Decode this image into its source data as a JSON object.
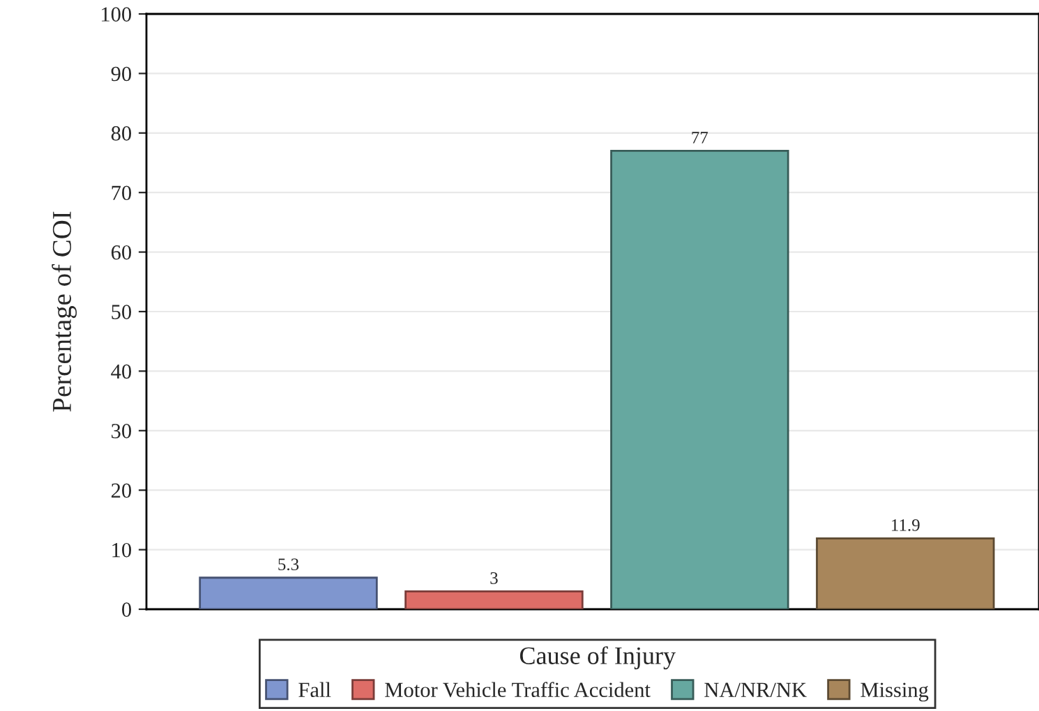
{
  "chart_data": {
    "type": "bar",
    "ylabel": "Percentage of COI",
    "legend_title": "Cause of Injury",
    "categories": [
      null,
      null,
      null,
      null
    ],
    "series": [
      {
        "name": "Fall",
        "color": "#7f96cf",
        "values": [
          5.3,
          null,
          null,
          null
        ]
      },
      {
        "name": "Motor Vehicle Traffic Accident",
        "color": "#de6d67",
        "values": [
          null,
          3,
          null,
          null
        ]
      },
      {
        "name": "NA/NR/NK",
        "color": "#66a8a0",
        "values": [
          null,
          null,
          77,
          null
        ]
      },
      {
        "name": "Missing",
        "color": "#a8865b",
        "values": [
          null,
          null,
          null,
          11.9
        ]
      }
    ],
    "ylim": [
      0,
      100
    ],
    "yticks": [
      0,
      10,
      20,
      30,
      40,
      50,
      60,
      70,
      80,
      90,
      100
    ],
    "grid": "y",
    "legend": "bottom",
    "data_labels": true
  }
}
